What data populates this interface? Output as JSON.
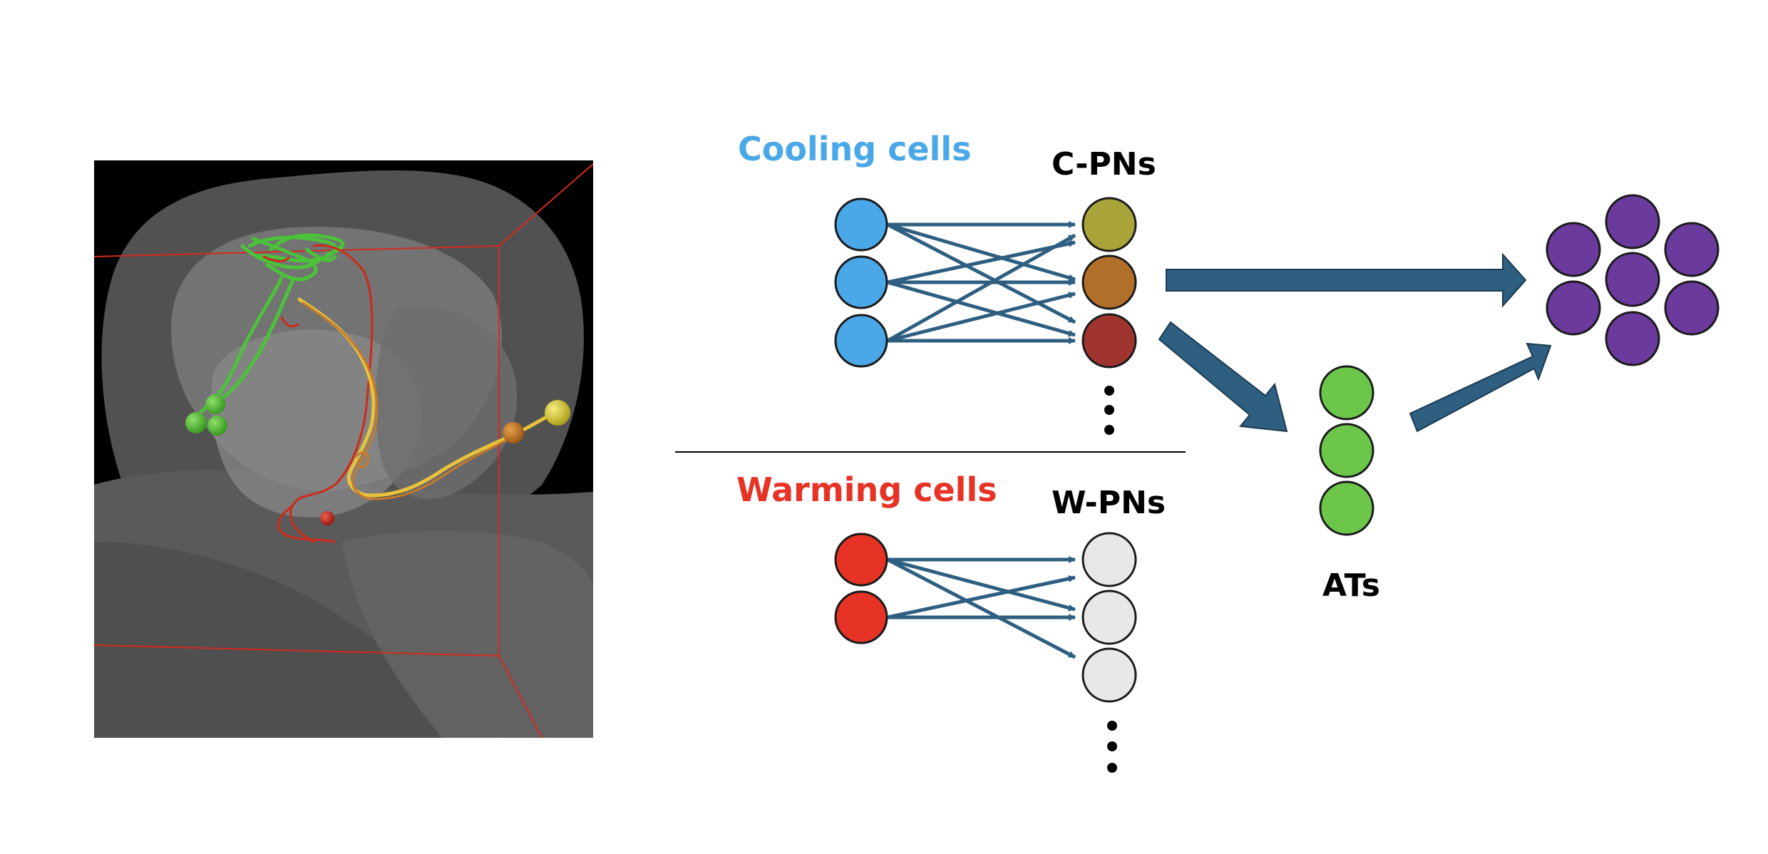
{
  "labels": {
    "cooling": "Cooling cells",
    "warming": "Warming cells",
    "cpns": "C-PNs",
    "wpns": "W-PNs",
    "ats": "ATs"
  },
  "colors": {
    "cooling_cell": "#4aa8e8",
    "warming_cell": "#e63325",
    "cpn_1": "#a8a43a",
    "cpn_2": "#b26f2a",
    "cpn_3": "#a03530",
    "wpn": "#e8e8e8",
    "at": "#6cc64a",
    "output": "#6a3a9c",
    "arrow": "#2e5f80",
    "cooling_text": "#4aa8e8",
    "warming_text": "#e63325"
  },
  "panel": {
    "description_icon": "neuron-3d-render"
  }
}
